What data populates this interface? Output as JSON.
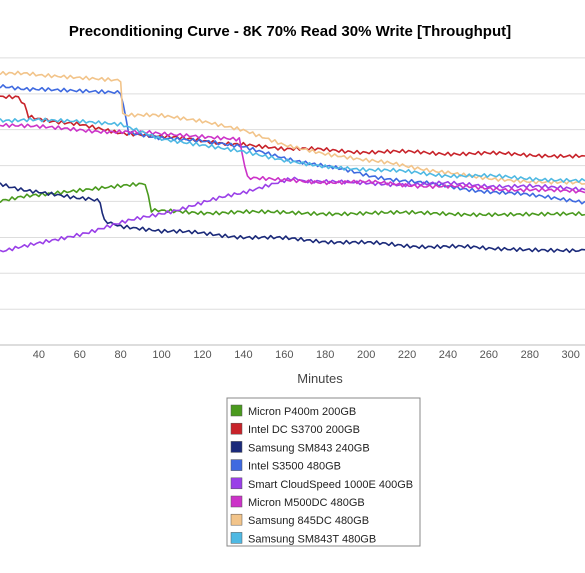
{
  "chart_data": {
    "type": "line",
    "title": "Preconditioning Curve - 8K 70% Read 30% Write [Throughput]",
    "xlabel": "Minutes",
    "ylabel": "",
    "xlim": [
      21,
      307
    ],
    "ylim": [
      0,
      100
    ],
    "x_ticks": [
      40,
      60,
      80,
      100,
      120,
      140,
      160,
      180,
      200,
      220,
      240,
      260,
      280,
      300
    ],
    "x_tick_labels": [
      "40",
      "60",
      "80",
      "100",
      "120",
      "140",
      "160",
      "180",
      "200",
      "220",
      "240",
      "260",
      "280",
      "300"
    ],
    "y_gridlines": [
      0,
      12.2,
      24.5,
      36.7,
      49,
      61.2,
      73.5,
      85.7,
      98
    ],
    "grid": "horizontal",
    "legend_position": "bottom-center",
    "series": [
      {
        "name": "Micron P400m 200GB",
        "color": "#4a9a1e",
        "points": [
          [
            21,
            49.5
          ],
          [
            40,
            51
          ],
          [
            60,
            52.5
          ],
          [
            80,
            54
          ],
          [
            92,
            55
          ],
          [
            95,
            46
          ],
          [
            100,
            45.5
          ],
          [
            140,
            45.2
          ],
          [
            200,
            45
          ],
          [
            260,
            44.8
          ],
          [
            307,
            44.5
          ]
        ]
      },
      {
        "name": "Intel DC S3700 200GB",
        "color": "#c8232a",
        "points": [
          [
            21,
            85
          ],
          [
            30,
            85
          ],
          [
            33,
            82
          ],
          [
            35,
            78
          ],
          [
            60,
            75
          ],
          [
            80,
            72
          ],
          [
            100,
            71
          ],
          [
            140,
            68.5
          ],
          [
            160,
            67
          ],
          [
            200,
            66
          ],
          [
            240,
            65.5
          ],
          [
            280,
            65
          ],
          [
            307,
            64.5
          ]
        ]
      },
      {
        "name": "Samsung SM843 240GB",
        "color": "#1b2a7a",
        "points": [
          [
            21,
            55
          ],
          [
            40,
            52
          ],
          [
            60,
            50
          ],
          [
            70,
            49
          ],
          [
            72,
            42
          ],
          [
            80,
            40.5
          ],
          [
            100,
            39
          ],
          [
            140,
            37
          ],
          [
            180,
            35.5
          ],
          [
            220,
            34
          ],
          [
            260,
            33
          ],
          [
            307,
            32.5
          ]
        ]
      },
      {
        "name": "Intel S3500 480GB",
        "color": "#3f6ae0",
        "points": [
          [
            21,
            88
          ],
          [
            40,
            87.5
          ],
          [
            60,
            87
          ],
          [
            80,
            86.5
          ],
          [
            84,
            72
          ],
          [
            100,
            71
          ],
          [
            120,
            70
          ],
          [
            140,
            68
          ],
          [
            160,
            64
          ],
          [
            200,
            58
          ],
          [
            240,
            54
          ],
          [
            280,
            51
          ],
          [
            307,
            49
          ]
        ]
      },
      {
        "name": "Smart CloudSpeed 1000E 400GB",
        "color": "#9a40e8",
        "points": [
          [
            21,
            31.5
          ],
          [
            60,
            38
          ],
          [
            100,
            45
          ],
          [
            140,
            52
          ],
          [
            160,
            56
          ],
          [
            165,
            56.5
          ],
          [
            170,
            56
          ],
          [
            200,
            55
          ],
          [
            240,
            55
          ],
          [
            280,
            54
          ],
          [
            307,
            53
          ]
        ]
      },
      {
        "name": "Micron M500DC 480GB",
        "color": "#cc33c8",
        "points": [
          [
            21,
            75
          ],
          [
            60,
            73.5
          ],
          [
            100,
            72
          ],
          [
            138,
            70.5
          ],
          [
            142,
            57
          ],
          [
            160,
            56
          ],
          [
            200,
            55.5
          ],
          [
            240,
            54
          ],
          [
            280,
            53
          ],
          [
            307,
            52
          ]
        ]
      },
      {
        "name": "Samsung 845DC 480GB",
        "color": "#f2c48a",
        "points": [
          [
            21,
            93
          ],
          [
            40,
            92
          ],
          [
            60,
            91
          ],
          [
            80,
            90
          ],
          [
            81,
            79
          ],
          [
            100,
            78
          ],
          [
            120,
            76
          ],
          [
            140,
            73
          ],
          [
            160,
            68
          ],
          [
            180,
            65
          ],
          [
            200,
            63
          ],
          [
            240,
            59
          ],
          [
            260,
            57
          ],
          [
            280,
            56
          ],
          [
            307,
            55
          ]
        ]
      },
      {
        "name": "Samsung SM843T 480GB",
        "color": "#4fb9e3",
        "points": [
          [
            21,
            77
          ],
          [
            40,
            76.5
          ],
          [
            60,
            76
          ],
          [
            80,
            75
          ],
          [
            100,
            70
          ],
          [
            120,
            68
          ],
          [
            140,
            66
          ],
          [
            160,
            63
          ],
          [
            180,
            61
          ],
          [
            200,
            60
          ],
          [
            240,
            58
          ],
          [
            280,
            57
          ],
          [
            307,
            56
          ]
        ]
      }
    ]
  }
}
